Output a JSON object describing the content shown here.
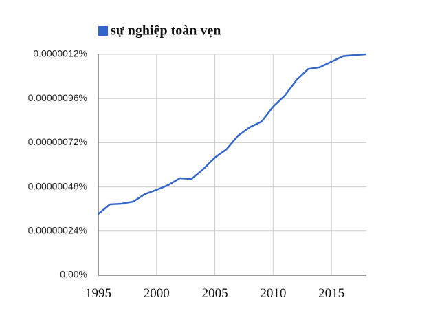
{
  "chart_data": {
    "type": "line",
    "x": [
      1995,
      1996,
      1997,
      1998,
      1999,
      2000,
      2001,
      2002,
      2003,
      2004,
      2005,
      2006,
      2007,
      2008,
      2009,
      2010,
      2011,
      2012,
      2013,
      2014,
      2015,
      2016,
      2017,
      2018
    ],
    "series": [
      {
        "name": "sự nghiệp toàn vẹn",
        "color": "#3366cc",
        "values": [
          3.33e-07,
          3.85e-07,
          3.89e-07,
          4e-07,
          4.41e-07,
          4.64e-07,
          4.9e-07,
          5.27e-07,
          5.23e-07,
          5.76e-07,
          6.39e-07,
          6.84e-07,
          7.59e-07,
          8.04e-07,
          8.34e-07,
          9.16e-07,
          9.76e-07,
          1.06e-06,
          1.12e-06,
          1.13e-06,
          1.16e-06,
          1.19e-06,
          1.196e-06,
          1.2e-06
        ]
      }
    ],
    "xlim": [
      1995,
      2018
    ],
    "xticks": [
      1995,
      2000,
      2005,
      2010,
      2015
    ],
    "ylim": [
      0,
      1.2e-06
    ],
    "yticks": [
      {
        "value": 0,
        "label": "0.00%"
      },
      {
        "value": 2.4e-07,
        "label": "0.00000024%"
      },
      {
        "value": 4.8e-07,
        "label": "0.00000048%"
      },
      {
        "value": 7.2e-07,
        "label": "0.00000072%"
      },
      {
        "value": 9.6e-07,
        "label": "0.00000096%"
      },
      {
        "value": 1.2e-06,
        "label": "0.0000012%"
      }
    ],
    "grid": true
  }
}
